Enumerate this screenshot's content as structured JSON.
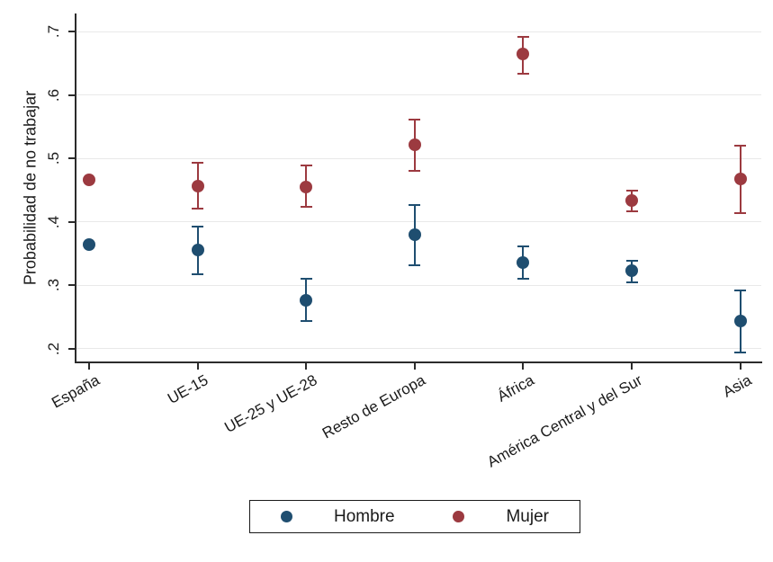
{
  "chart_data": {
    "type": "scatter",
    "title": "",
    "xlabel": "",
    "ylabel": "Probabilidad de no trabajar",
    "grid": true,
    "ylim": [
      0.18,
      0.73
    ],
    "y_tick_labels": [
      ".2",
      ".3",
      ".4",
      ".5",
      ".6",
      ".7"
    ],
    "y_tick_values": [
      0.2,
      0.3,
      0.4,
      0.5,
      0.6,
      0.7
    ],
    "categories": [
      "España",
      "UE-15",
      "UE-25 y UE-28",
      "Resto de Europa",
      "África",
      "América Central y del Sur",
      "Asia"
    ],
    "series": [
      {
        "name": "Hombre",
        "color": "#1f4e70",
        "values": [
          0.364,
          0.355,
          0.276,
          0.379,
          0.335,
          0.322,
          0.243
        ],
        "ci_low": [
          0.364,
          0.317,
          0.243,
          0.331,
          0.31,
          0.304,
          0.193
        ],
        "ci_high": [
          0.364,
          0.392,
          0.31,
          0.426,
          0.361,
          0.339,
          0.291
        ]
      },
      {
        "name": "Mujer",
        "color": "#9c3a40",
        "values": [
          0.466,
          0.456,
          0.455,
          0.521,
          0.665,
          0.434,
          0.467
        ],
        "ci_low": [
          0.466,
          0.42,
          0.423,
          0.48,
          0.634,
          0.416,
          0.413
        ],
        "ci_high": [
          0.466,
          0.493,
          0.489,
          0.561,
          0.692,
          0.449,
          0.52
        ]
      }
    ],
    "legend": {
      "position": "bottom-center",
      "border": true,
      "labels": [
        "Hombre",
        "Mujer"
      ]
    }
  }
}
